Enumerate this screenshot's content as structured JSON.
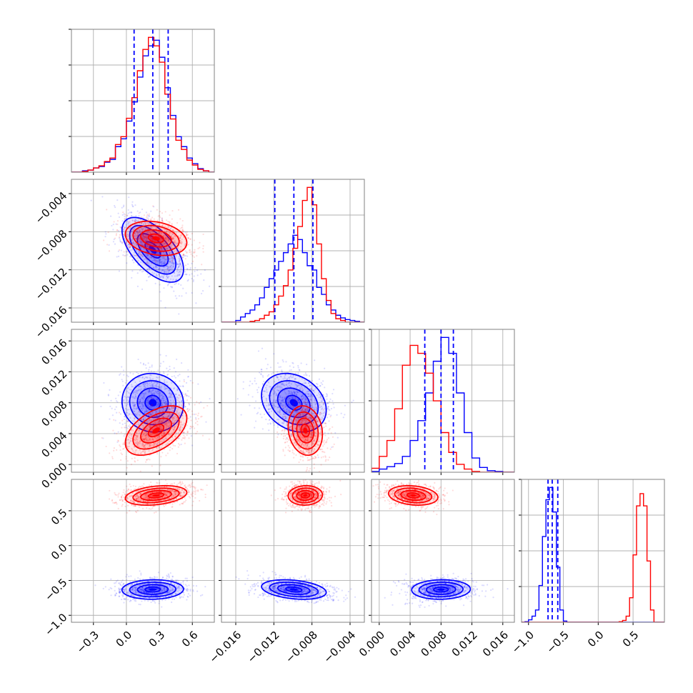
{
  "chart_data": {
    "type": "corner",
    "n_params": 4,
    "series": [
      {
        "name": "",
        "color": "#0000ff"
      },
      {
        "name": "",
        "color": "#ff0000"
      }
    ],
    "params": [
      {
        "range": [
          -0.5,
          0.8
        ],
        "ticks": [
          -0.3,
          0.0,
          0.3,
          0.6
        ],
        "tick_labels": [
          "−0.3",
          "0.0",
          "0.3",
          "0.6"
        ]
      },
      {
        "range": [
          -0.0175,
          -0.0025
        ],
        "ticks": [
          -0.016,
          -0.012,
          -0.008,
          -0.004
        ],
        "tick_labels": [
          "−0.016",
          "−0.012",
          "−0.008",
          "−0.004"
        ]
      },
      {
        "range": [
          -0.001,
          0.0175
        ],
        "ticks": [
          0.0,
          0.004,
          0.008,
          0.012,
          0.016
        ],
        "tick_labels": [
          "0.000",
          "0.004",
          "0.008",
          "0.012",
          "0.016"
        ]
      },
      {
        "range": [
          -1.1,
          0.95
        ],
        "ticks": [
          -1.0,
          -0.5,
          0.0,
          0.5
        ],
        "tick_labels": [
          "−1.0",
          "−0.5",
          "0.0",
          "0.5"
        ]
      }
    ],
    "quantile_lines": {
      "color": "#0000ff",
      "values": [
        [
          0.07,
          0.24,
          0.38
        ],
        [
          -0.0119,
          -0.0099,
          -0.0079
        ],
        [
          0.0059,
          0.008,
          0.0096
        ],
        [
          -0.72,
          -0.66,
          -0.58
        ]
      ]
    },
    "histograms": [
      {
        "bins": [
          -0.5,
          -0.45,
          -0.4,
          -0.35,
          -0.3,
          -0.25,
          -0.2,
          -0.15,
          -0.1,
          -0.05,
          0.0,
          0.05,
          0.1,
          0.15,
          0.2,
          0.25,
          0.3,
          0.35,
          0.4,
          0.45,
          0.5,
          0.55,
          0.6,
          0.65,
          0.7,
          0.75,
          0.8
        ],
        "blue": [
          0,
          0,
          2,
          3,
          6,
          8,
          14,
          18,
          36,
          47,
          72,
          99,
          134,
          164,
          178,
          186,
          162,
          119,
          80,
          50,
          36,
          20,
          12,
          5,
          2,
          0
        ],
        "red": [
          0,
          0,
          1,
          3,
          6,
          9,
          15,
          20,
          39,
          50,
          76,
          105,
          143,
          173,
          190,
          178,
          155,
          110,
          75,
          45,
          32,
          17,
          10,
          4,
          2,
          0
        ]
      },
      {
        "bins": [
          -0.0175,
          -0.017,
          -0.0165,
          -0.016,
          -0.0155,
          -0.015,
          -0.0145,
          -0.014,
          -0.0135,
          -0.013,
          -0.0125,
          -0.012,
          -0.0115,
          -0.011,
          -0.0105,
          -0.01,
          -0.0095,
          -0.009,
          -0.0085,
          -0.008,
          -0.0075,
          -0.007,
          -0.0065,
          -0.006,
          -0.0055,
          -0.005,
          -0.0045,
          -0.004,
          -0.0035,
          -0.003,
          -0.0025
        ],
        "blue": [
          0,
          0,
          0,
          2,
          6,
          10,
          14,
          20,
          28,
          40,
          50,
          60,
          70,
          80,
          90,
          100,
          95,
          80,
          65,
          60,
          40,
          32,
          20,
          14,
          8,
          5,
          3,
          2,
          1,
          0
        ],
        "red": [
          0,
          0,
          0,
          0,
          0,
          0,
          1,
          2,
          4,
          8,
          12,
          20,
          30,
          42,
          60,
          85,
          110,
          140,
          155,
          135,
          90,
          50,
          25,
          10,
          4,
          2,
          0,
          0,
          0,
          0
        ]
      },
      {
        "bins": [
          -0.001,
          0.0,
          0.001,
          0.002,
          0.003,
          0.004,
          0.005,
          0.006,
          0.007,
          0.008,
          0.009,
          0.01,
          0.011,
          0.012,
          0.013,
          0.014,
          0.015,
          0.016,
          0.017,
          0.0175
        ],
        "blue": [
          1,
          4,
          7,
          11,
          20,
          40,
          65,
          100,
          140,
          170,
          150,
          100,
          50,
          18,
          6,
          2,
          1,
          0,
          0
        ],
        "red": [
          5,
          20,
          40,
          80,
          135,
          160,
          150,
          125,
          90,
          50,
          25,
          10,
          4,
          1,
          0,
          0,
          0,
          0,
          0
        ]
      },
      {
        "bins": [
          -1.1,
          -1.05,
          -1.0,
          -0.95,
          -0.9,
          -0.85,
          -0.8,
          -0.75,
          -0.7,
          -0.65,
          -0.6,
          -0.55,
          -0.5,
          -0.45,
          -0.4,
          -0.35,
          -0.3,
          -0.25,
          -0.2,
          -0.15,
          -0.1,
          -0.05,
          0.0,
          0.05,
          0.1,
          0.15,
          0.2,
          0.25,
          0.3,
          0.35,
          0.4,
          0.45,
          0.5,
          0.55,
          0.6,
          0.65,
          0.7,
          0.75,
          0.8,
          0.85,
          0.9,
          0.95
        ],
        "blue": [
          0,
          1,
          4,
          10,
          20,
          60,
          140,
          200,
          220,
          180,
          90,
          20,
          2,
          0,
          0,
          0,
          0,
          0,
          0,
          0,
          0,
          0,
          0,
          0,
          0,
          0,
          0,
          0,
          0,
          0,
          0,
          0,
          0,
          0,
          0,
          0,
          0,
          0,
          0,
          0,
          0
        ],
        "red": [
          0,
          0,
          0,
          0,
          0,
          0,
          0,
          0,
          0,
          0,
          0,
          0,
          0,
          0,
          0,
          0,
          0,
          0,
          0,
          0,
          0,
          0,
          0,
          0,
          0,
          0,
          0,
          0,
          1,
          3,
          10,
          40,
          110,
          190,
          210,
          190,
          100,
          20,
          0,
          0,
          0
        ]
      }
    ],
    "joint_distributions": {
      "blue": {
        "mean": [
          0.24,
          -0.0099,
          0.008,
          -0.63
        ],
        "std": [
          0.14,
          0.0017,
          0.0019,
          0.07
        ],
        "corr": [
          [
            1,
            -0.6,
            -0.05,
            0.05
          ],
          [
            -0.6,
            1,
            -0.25,
            -0.3
          ],
          [
            -0.05,
            -0.25,
            1,
            0.05
          ],
          [
            0.05,
            -0.3,
            0.05,
            1
          ]
        ]
      },
      "red": {
        "mean": [
          0.27,
          -0.0087,
          0.0044,
          0.72
        ],
        "std": [
          0.14,
          0.0009,
          0.0016,
          0.07
        ],
        "corr": [
          [
            1,
            -0.25,
            0.5,
            0.3
          ],
          [
            -0.25,
            1,
            -0.15,
            0.05
          ],
          [
            0.5,
            -0.15,
            1,
            -0.2
          ],
          [
            0.3,
            0.05,
            -0.2,
            1
          ]
        ]
      }
    },
    "contour_levels": [
      0.5,
      1.0,
      1.5,
      2.0
    ],
    "grid": true,
    "legend": "none"
  }
}
